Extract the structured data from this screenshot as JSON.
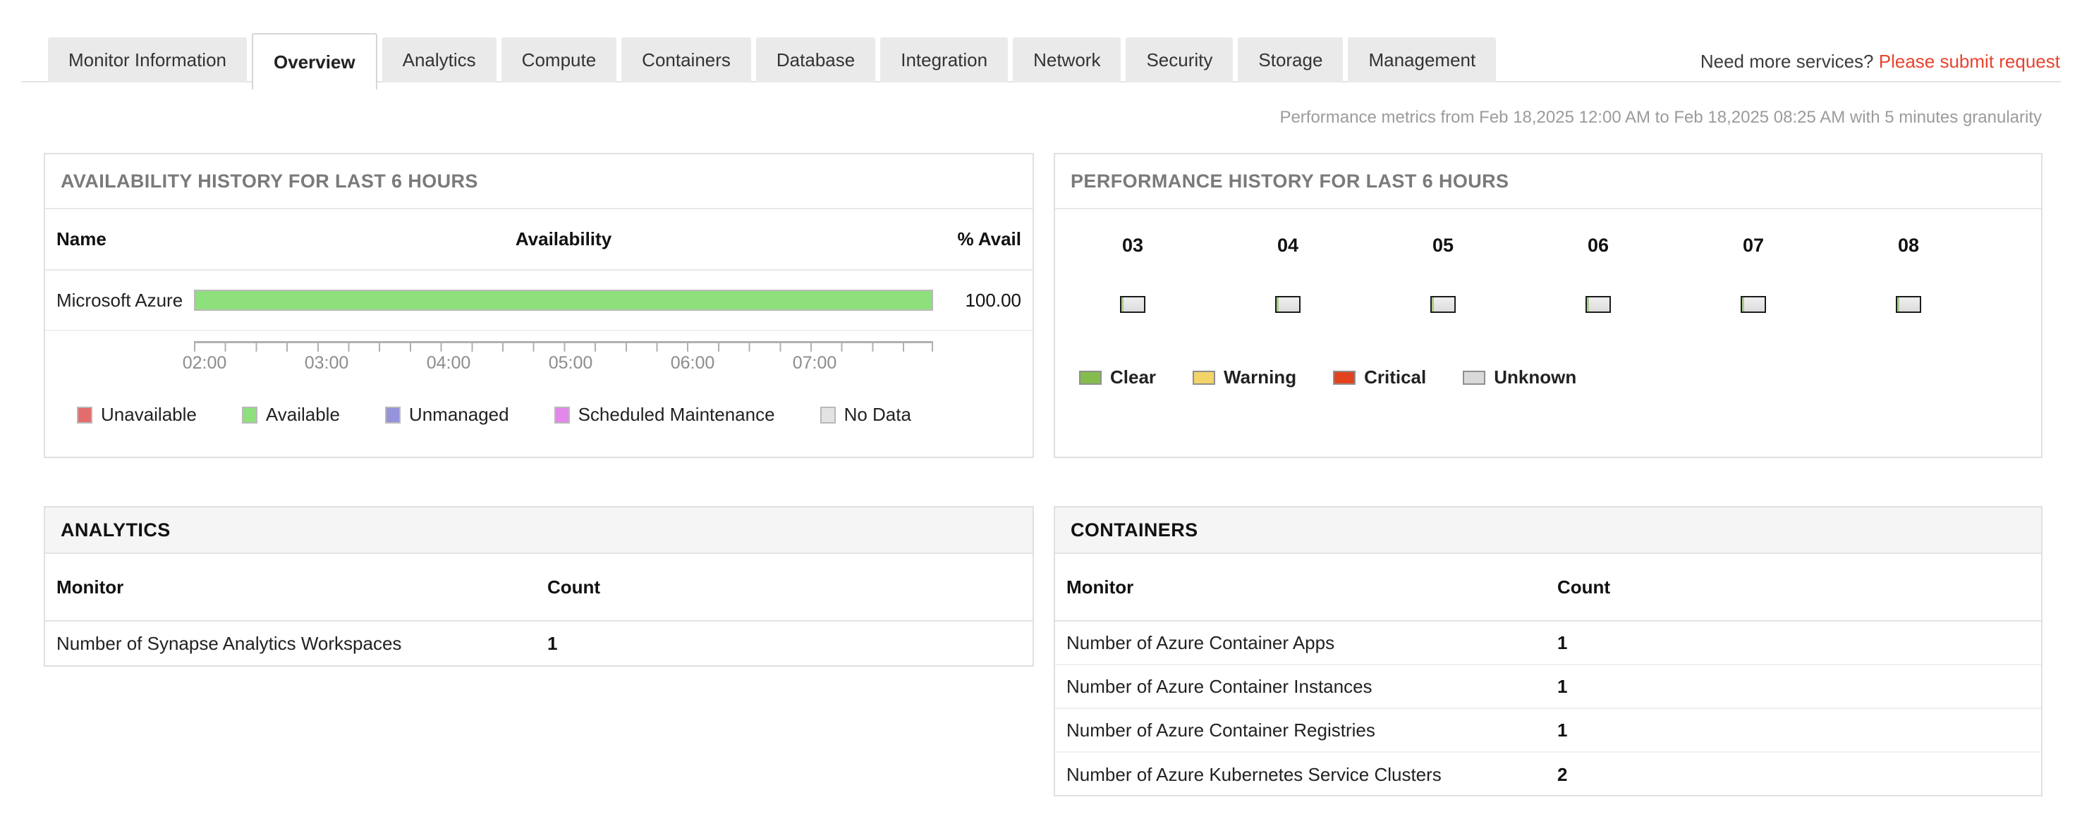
{
  "tabs": {
    "items": [
      {
        "label": "Monitor Information",
        "active": false
      },
      {
        "label": "Overview",
        "active": true
      },
      {
        "label": "Analytics",
        "active": false
      },
      {
        "label": "Compute",
        "active": false
      },
      {
        "label": "Containers",
        "active": false
      },
      {
        "label": "Database",
        "active": false
      },
      {
        "label": "Integration",
        "active": false
      },
      {
        "label": "Network",
        "active": false
      },
      {
        "label": "Security",
        "active": false
      },
      {
        "label": "Storage",
        "active": false
      },
      {
        "label": "Management",
        "active": false
      }
    ]
  },
  "header": {
    "need_more_text": "Need more services?",
    "submit_request_label": "Please submit request",
    "submit_request_color": "#e8432e"
  },
  "subtitle": "Performance metrics from Feb 18,2025 12:00 AM to Feb 18,2025 08:25 AM with 5 minutes granularity",
  "availability_panel": {
    "title": "AVAILABILITY HISTORY FOR LAST 6 HOURS",
    "columns": {
      "name": "Name",
      "availability": "Availability",
      "percent": "% Avail"
    },
    "rows": [
      {
        "name": "Microsoft Azure",
        "percent_text": "100.00",
        "percent_value": 100,
        "bar_color": "#8de07c"
      }
    ],
    "axis_labels": [
      {
        "label": "02:00"
      },
      {
        "label": "03:00"
      },
      {
        "label": "04:00"
      },
      {
        "label": "05:00"
      },
      {
        "label": "06:00"
      },
      {
        "label": "07:00"
      }
    ],
    "legend": [
      {
        "label": "Unavailable",
        "color": "#e36c6c"
      },
      {
        "label": "Available",
        "color": "#8de07c"
      },
      {
        "label": "Unmanaged",
        "color": "#9693dd"
      },
      {
        "label": "Scheduled Maintenance",
        "color": "#e387ea"
      },
      {
        "label": "No Data",
        "color": "#e3e3e3"
      }
    ]
  },
  "performance_panel": {
    "title": "PERFORMANCE HISTORY FOR LAST 6 HOURS",
    "hours": [
      {
        "label": "03"
      },
      {
        "label": "04"
      },
      {
        "label": "05"
      },
      {
        "label": "06"
      },
      {
        "label": "07"
      },
      {
        "label": "08"
      }
    ],
    "bar": {
      "fill": "#e4e4e4",
      "clear_sliver": "#a8cd8a",
      "border": "#1c1c1c"
    },
    "legend": [
      {
        "label": "Clear",
        "color": "#84bd4e"
      },
      {
        "label": "Warning",
        "color": "#f3d469"
      },
      {
        "label": "Critical",
        "color": "#e2431e"
      },
      {
        "label": "Unknown",
        "color": "#d9d9d9"
      }
    ]
  },
  "analytics_panel": {
    "title": "ANALYTICS",
    "columns": {
      "monitor": "Monitor",
      "count": "Count"
    },
    "rows": [
      {
        "monitor": "Number of Synapse Analytics Workspaces",
        "count": "1"
      }
    ]
  },
  "containers_panel": {
    "title": "CONTAINERS",
    "columns": {
      "monitor": "Monitor",
      "count": "Count"
    },
    "rows": [
      {
        "monitor": "Number of Azure Container Apps",
        "count": "1"
      },
      {
        "monitor": "Number of Azure Container Instances",
        "count": "1"
      },
      {
        "monitor": "Number of Azure Container Registries",
        "count": "1"
      },
      {
        "monitor": "Number of Azure Kubernetes Service Clusters",
        "count": "2"
      }
    ]
  },
  "chart_data": [
    {
      "type": "bar",
      "title": "AVAILABILITY HISTORY FOR LAST 6 HOURS",
      "categories": [
        "Microsoft Azure"
      ],
      "values": [
        100.0
      ],
      "xlabel": "",
      "ylabel": "% Avail",
      "x_time_ticks": [
        "02:00",
        "03:00",
        "04:00",
        "05:00",
        "06:00",
        "07:00"
      ],
      "legend": [
        "Unavailable",
        "Available",
        "Unmanaged",
        "Scheduled Maintenance",
        "No Data"
      ],
      "legend_position": "bottom"
    },
    {
      "type": "heatmap",
      "title": "PERFORMANCE HISTORY FOR LAST 6 HOURS",
      "categories": [
        "03",
        "04",
        "05",
        "06",
        "07",
        "08"
      ],
      "values": [
        "unknown",
        "unknown",
        "unknown",
        "unknown",
        "unknown",
        "unknown"
      ],
      "legend": [
        "Clear",
        "Warning",
        "Critical",
        "Unknown"
      ],
      "legend_position": "bottom"
    }
  ]
}
